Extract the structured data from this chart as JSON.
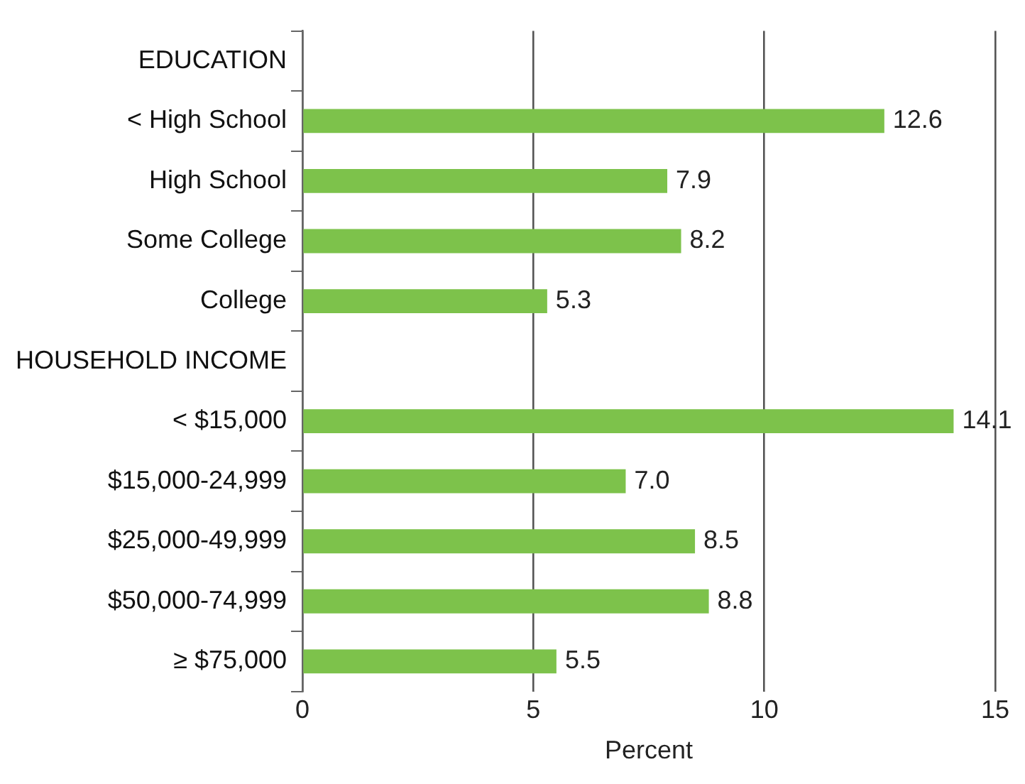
{
  "chart_data": {
    "type": "bar",
    "orientation": "horizontal",
    "categories": [
      "EDUCATION",
      "< High School",
      "High School",
      "Some College",
      "College",
      "HOUSEHOLD INCOME",
      "< $15,000",
      "$15,000-24,999",
      "$25,000-49,999",
      "$50,000-74,999",
      "≥ $75,000"
    ],
    "values": [
      null,
      12.6,
      7.9,
      8.2,
      5.3,
      null,
      14.1,
      7.0,
      8.5,
      8.8,
      5.5
    ],
    "value_labels": [
      null,
      "12.6",
      "7.9",
      "8.2",
      "5.3",
      null,
      "14.1",
      "7.0",
      "8.5",
      "8.8",
      "5.5"
    ],
    "color": "#7dc24b",
    "xlim": [
      0,
      15
    ],
    "xticks": [
      0,
      5,
      10,
      15
    ],
    "xlabel": "Percent",
    "grid": "x",
    "legend": false
  }
}
